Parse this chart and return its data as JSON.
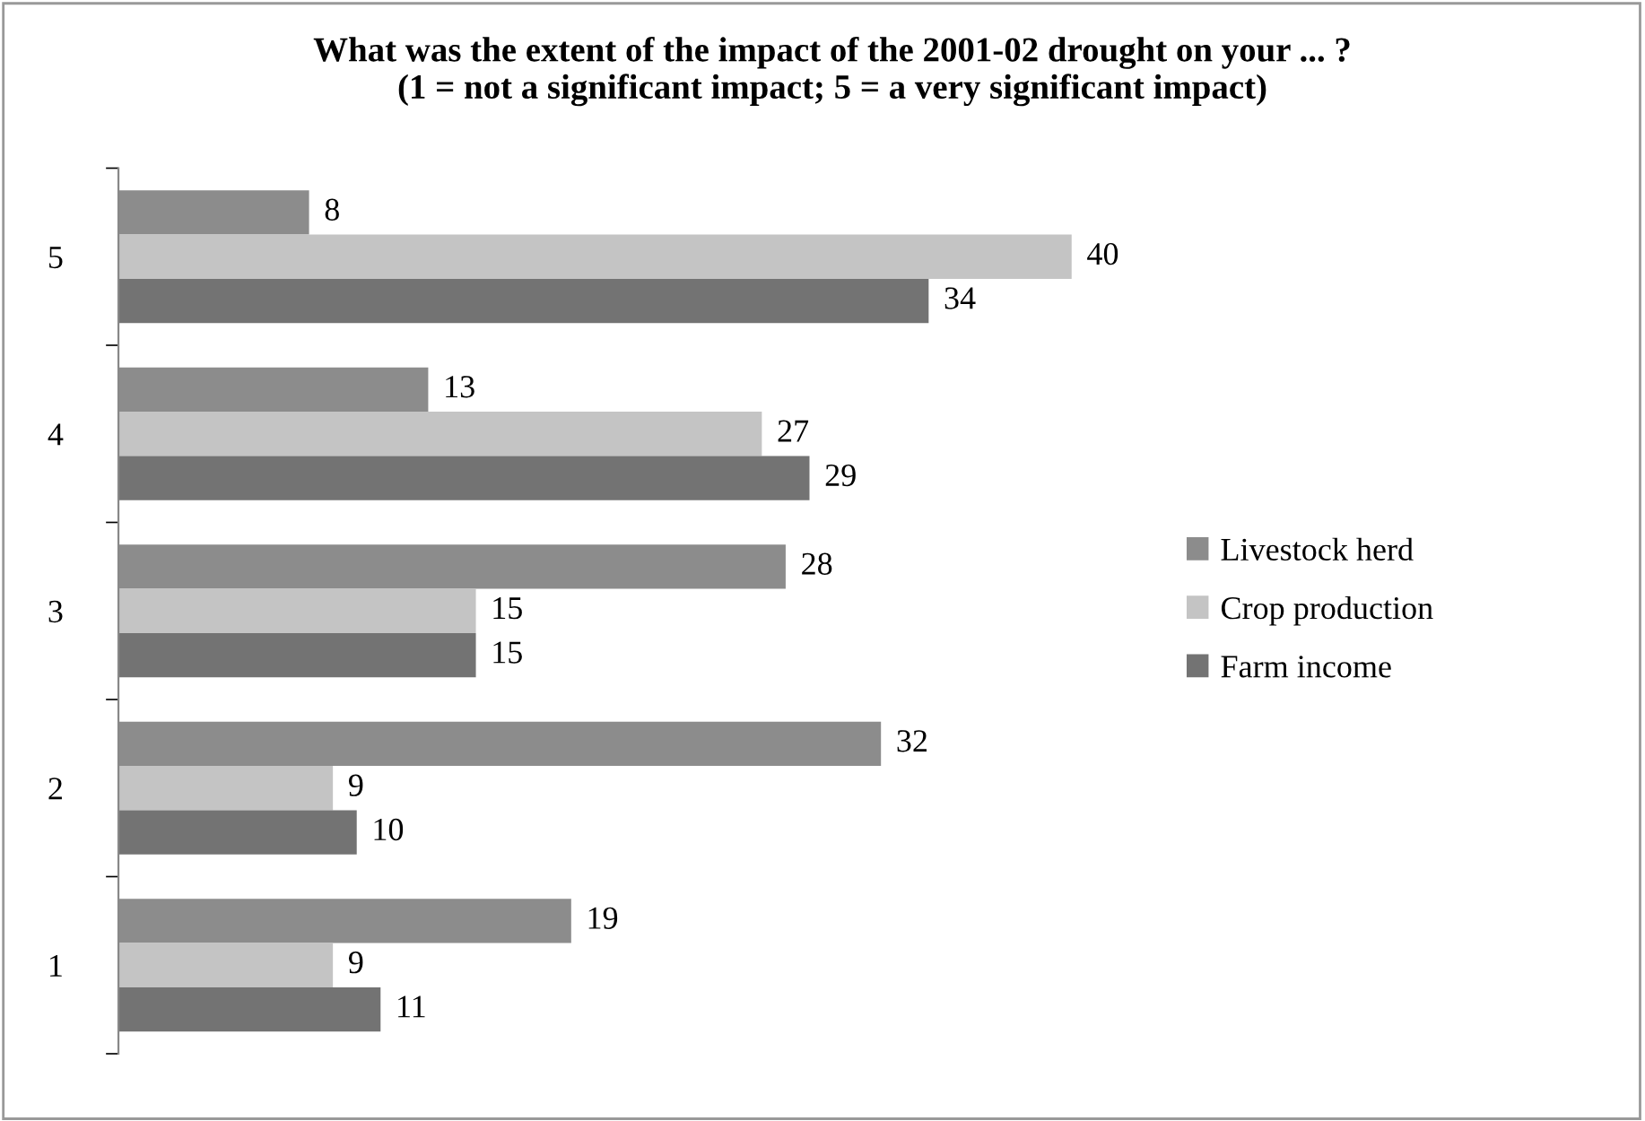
{
  "chart_data": {
    "type": "bar",
    "orientation": "horizontal",
    "title": "What was the extent of the impact of the 2001-02 drought on your ... ?\n(1 = not a significant impact; 5 = a very significant impact)",
    "categories": [
      "5",
      "4",
      "3",
      "2",
      "1"
    ],
    "series": [
      {
        "name": "Livestock herd",
        "color": "#8c8c8c",
        "values": [
          8,
          13,
          28,
          32,
          19
        ]
      },
      {
        "name": "Crop production",
        "color": "#c4c4c4",
        "values": [
          40,
          27,
          15,
          9,
          9
        ]
      },
      {
        "name": "Farm income",
        "color": "#737373",
        "values": [
          34,
          29,
          15,
          10,
          11
        ]
      }
    ],
    "data_labels": true,
    "legend": "right",
    "grid": false,
    "tick_labels": "y"
  }
}
